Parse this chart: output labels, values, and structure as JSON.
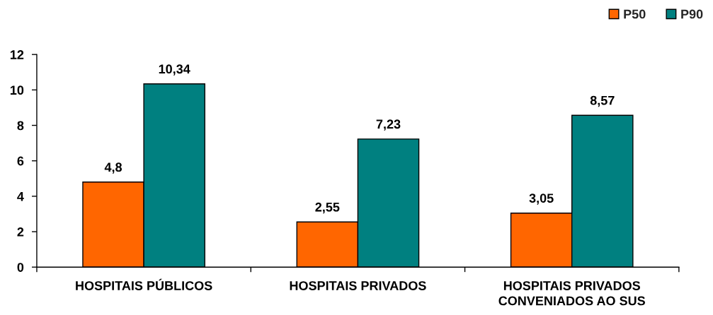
{
  "chart_data": {
    "type": "bar",
    "categories": [
      "HOSPITAIS PÚBLICOS",
      "HOSPITAIS PRIVADOS",
      "HOSPITAIS PRIVADOS\nCONVENIADOS AO SUS"
    ],
    "series": [
      {
        "name": "P50",
        "color": "#ff6600",
        "values": [
          4.8,
          2.55,
          3.05
        ],
        "value_labels": [
          "4,8",
          "2,55",
          "3,05"
        ]
      },
      {
        "name": "P90",
        "color": "#008080",
        "values": [
          10.34,
          7.23,
          8.57
        ],
        "value_labels": [
          "10,34",
          "7,23",
          "8,57"
        ]
      }
    ],
    "ylim": [
      0,
      12
    ],
    "yticks": [
      0,
      2,
      4,
      6,
      8,
      10,
      12
    ],
    "grid": false,
    "legend": "top right"
  }
}
